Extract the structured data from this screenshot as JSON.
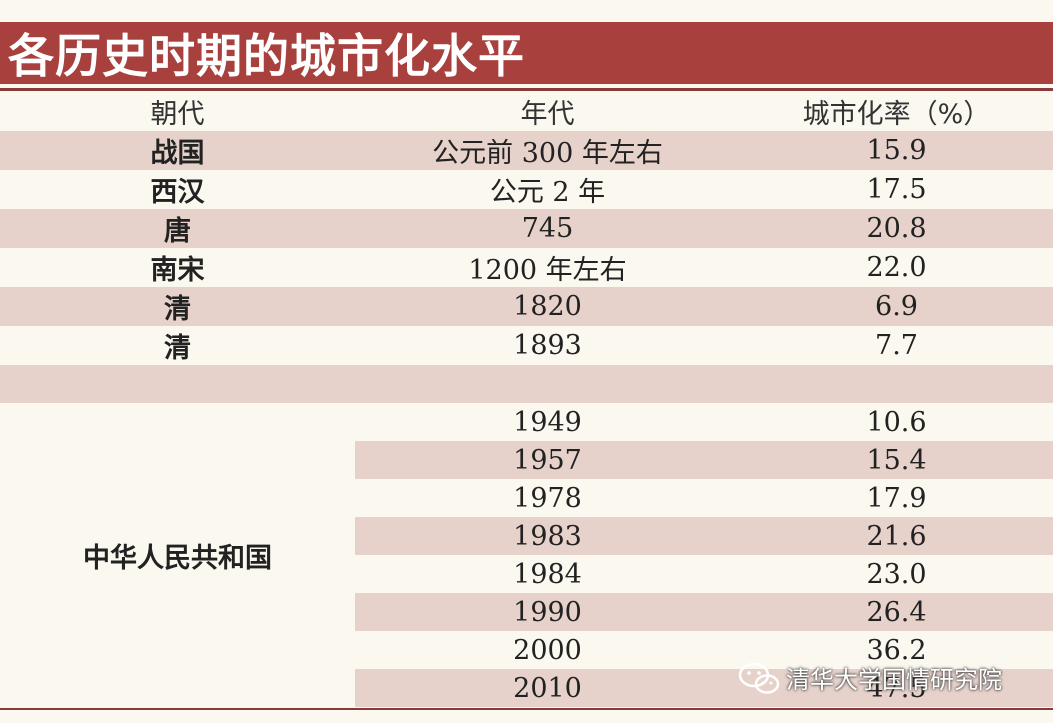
{
  "title": "各历史时期的城市化水平",
  "columns": [
    "朝代",
    "年代",
    "城市化率（%）"
  ],
  "rows": [
    {
      "dynasty": "战国",
      "year": "公元前 300 年左右",
      "rate": "15.9"
    },
    {
      "dynasty": "西汉",
      "year": "公元 2 年",
      "rate": "17.5"
    },
    {
      "dynasty": "唐",
      "year": "745",
      "rate": "20.8"
    },
    {
      "dynasty": "南宋",
      "year": "1200 年左右",
      "rate": "22.0"
    },
    {
      "dynasty": "清",
      "year": "1820",
      "rate": "6.9"
    },
    {
      "dynasty": "清",
      "year": "1893",
      "rate": "7.7"
    }
  ],
  "prc": {
    "name": "中华人民共和国",
    "rows": [
      {
        "year": "1949",
        "rate": "10.6"
      },
      {
        "year": "1957",
        "rate": "15.4"
      },
      {
        "year": "1978",
        "rate": "17.9"
      },
      {
        "year": "1983",
        "rate": "21.6"
      },
      {
        "year": "1984",
        "rate": "23.0"
      },
      {
        "year": "1990",
        "rate": "26.4"
      },
      {
        "year": "2000",
        "rate": "36.2"
      },
      {
        "year": "2010",
        "rate": "47.5"
      }
    ]
  },
  "watermark": {
    "text": "清华大学国情研究院",
    "icon": "wechat-icon"
  },
  "colors": {
    "title_bg": "#a8403e",
    "row_shade": "#e7d2cb",
    "page_bg": "#fbf8ef"
  }
}
